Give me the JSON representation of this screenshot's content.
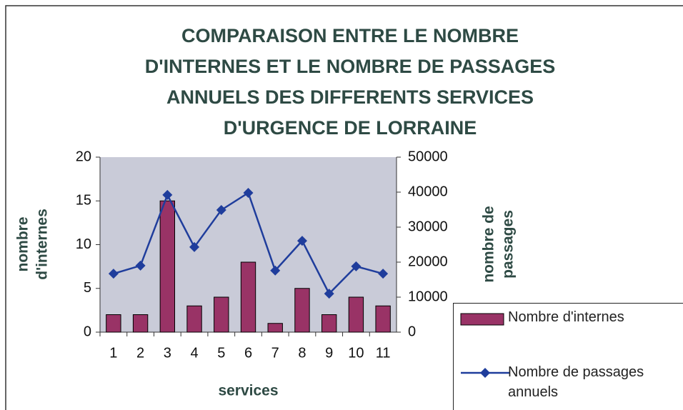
{
  "chart_data": {
    "type": "bar_line",
    "title": [
      "COMPARAISON ENTRE LE NOMBRE",
      "D'INTERNES ET LE NOMBRE DE PASSAGES",
      "ANNUELS DES DIFFERENTS SERVICES",
      "D'URGENCE DE LORRAINE"
    ],
    "x_label": "services",
    "y_label": [
      "nombre",
      "d'internes"
    ],
    "y2_label": [
      "nombre de",
      "passages"
    ],
    "categories": [
      "1",
      "2",
      "3",
      "4",
      "5",
      "6",
      "7",
      "8",
      "9",
      "10",
      "11"
    ],
    "series": [
      {
        "name": "Nombre d'internes",
        "type": "bar",
        "color": "#993366",
        "values": [
          2,
          2,
          15,
          3,
          4,
          8,
          1,
          5,
          2,
          4,
          3
        ]
      },
      {
        "name": "Nombre de passages annuels",
        "type": "line",
        "axis": "y2",
        "color": "#1f3d9c",
        "values": [
          16700,
          19000,
          39200,
          24300,
          34900,
          39800,
          17600,
          26100,
          11000,
          18800,
          16700
        ]
      }
    ],
    "ylim": [
      0,
      20
    ],
    "yticks": [
      0,
      5,
      10,
      15,
      20
    ],
    "y2lim": [
      0,
      50000
    ],
    "y2ticks": [
      0,
      10000,
      20000,
      30000,
      40000,
      50000
    ],
    "grid": false,
    "legend": "lower right"
  }
}
